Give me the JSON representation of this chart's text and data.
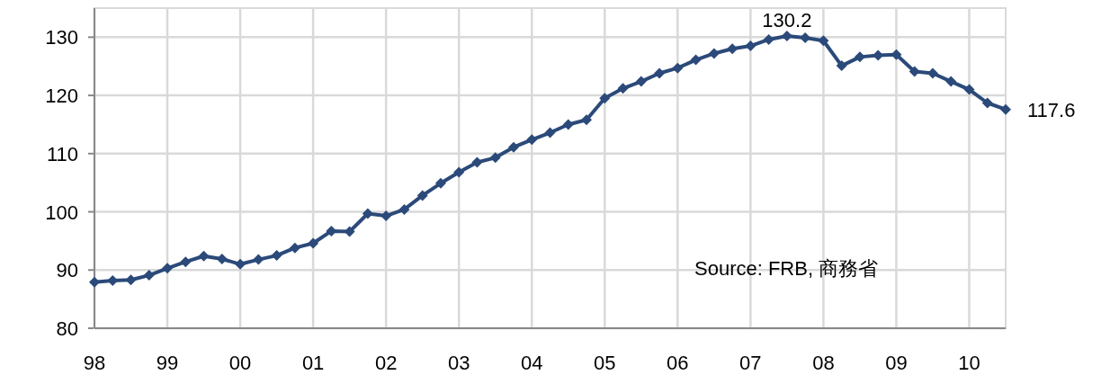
{
  "chart_data": {
    "type": "line",
    "x": [
      1998,
      1998.25,
      1998.5,
      1998.75,
      1999,
      1999.25,
      1999.5,
      1999.75,
      2000,
      2000.25,
      2000.5,
      2000.75,
      2001,
      2001.25,
      2001.5,
      2001.75,
      2002,
      2002.25,
      2002.5,
      2002.75,
      2003,
      2003.25,
      2003.5,
      2003.75,
      2004,
      2004.25,
      2004.5,
      2004.75,
      2005,
      2005.25,
      2005.5,
      2005.75,
      2006,
      2006.25,
      2006.5,
      2006.75,
      2007,
      2007.25,
      2007.5,
      2007.75,
      2008,
      2008.25,
      2008.5,
      2008.75,
      2009,
      2009.25,
      2009.5,
      2009.75,
      2010,
      2010.25,
      2010.5
    ],
    "series": [
      {
        "color": "#2b4a7a",
        "values": [
          87.9,
          88.2,
          88.3,
          89.1,
          90.3,
          91.4,
          92.4,
          91.9,
          91.0,
          91.8,
          92.5,
          93.8,
          94.6,
          96.7,
          96.6,
          99.7,
          99.3,
          100.4,
          102.8,
          104.9,
          106.8,
          108.5,
          109.3,
          111.1,
          112.4,
          113.6,
          115.0,
          115.8,
          119.5,
          121.2,
          122.4,
          123.8,
          124.7,
          126.1,
          127.2,
          128.0,
          128.5,
          129.6,
          130.2,
          129.9,
          129.4,
          125.1,
          126.6,
          126.9,
          127.0,
          124.1,
          123.8,
          122.4,
          121.0,
          118.7,
          117.6
        ]
      }
    ],
    "xlim": [
      1998,
      2010.5
    ],
    "xticks": [
      {
        "value": 1998,
        "label": "98"
      },
      {
        "value": 1999,
        "label": "99"
      },
      {
        "value": 2000,
        "label": "00"
      },
      {
        "value": 2001,
        "label": "01"
      },
      {
        "value": 2002,
        "label": "02"
      },
      {
        "value": 2003,
        "label": "03"
      },
      {
        "value": 2004,
        "label": "04"
      },
      {
        "value": 2005,
        "label": "05"
      },
      {
        "value": 2006,
        "label": "06"
      },
      {
        "value": 2007,
        "label": "07"
      },
      {
        "value": 2008,
        "label": "08"
      },
      {
        "value": 2009,
        "label": "09"
      },
      {
        "value": 2010,
        "label": "10"
      }
    ],
    "ylim": [
      80,
      135
    ],
    "yticks": [
      80,
      90,
      100,
      110,
      120,
      130
    ],
    "grid": true,
    "marker": "diamond",
    "annotations": [
      {
        "text": "130.2",
        "x": 2007.5,
        "y": 130.2
      },
      {
        "text": "117.6",
        "x": 2010.5,
        "y": 117.6
      },
      "Source: FRB, 商務省"
    ]
  }
}
